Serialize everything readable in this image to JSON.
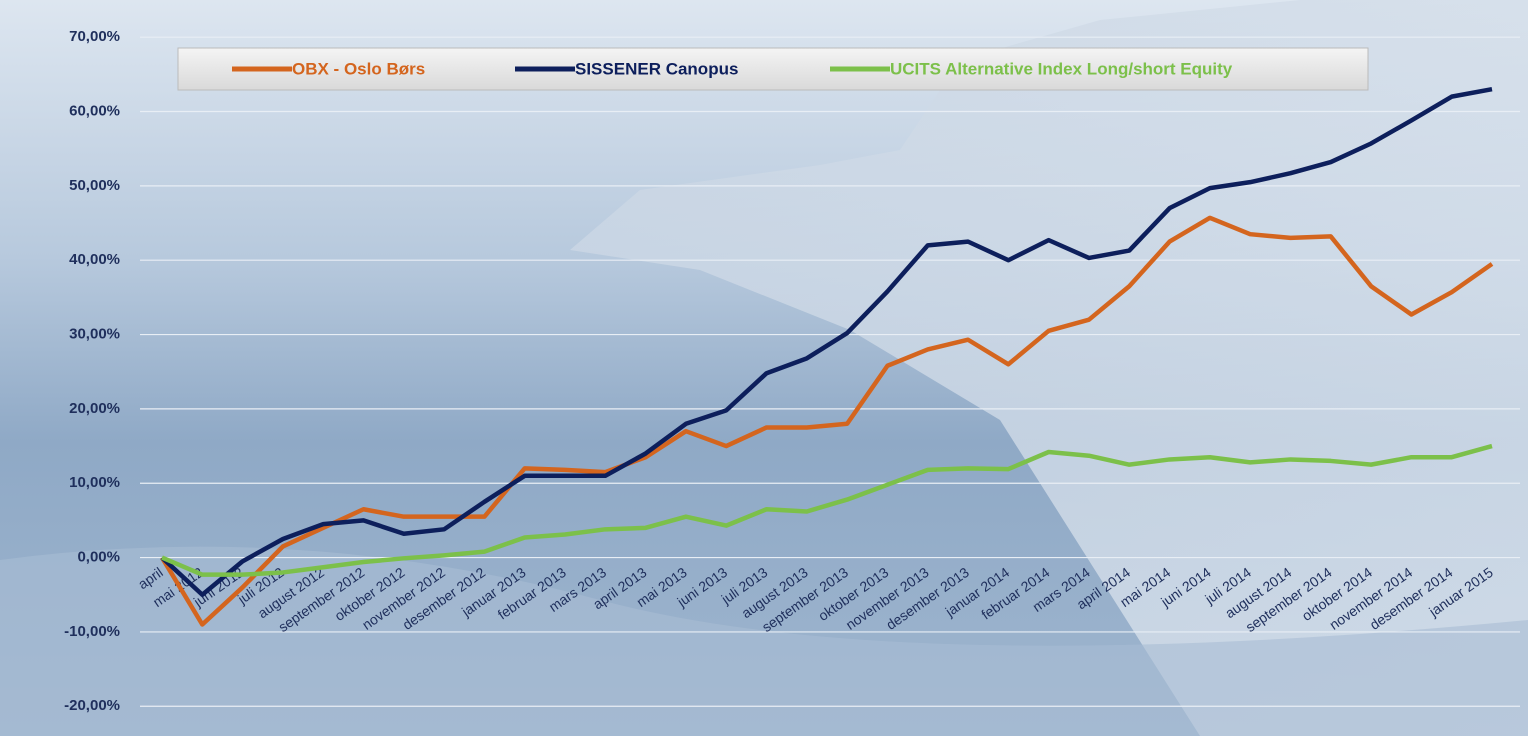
{
  "chart_data": {
    "type": "line",
    "categories": [
      "april",
      "mai 2012",
      "juni 2012",
      "juli 2012",
      "august 2012",
      "september 2012",
      "oktober 2012",
      "november 2012",
      "desember 2012",
      "januar 2013",
      "februar 2013",
      "mars 2013",
      "april 2013",
      "mai 2013",
      "juni 2013",
      "juli 2013",
      "august 2013",
      "september 2013",
      "oktober 2013",
      "november 2013",
      "desember 2013",
      "januar 2014",
      "februar 2014",
      "mars 2014",
      "april 2014",
      "mai 2014",
      "juni 2014",
      "juli 2014",
      "august 2014",
      "september 2014",
      "oktober 2014",
      "november 2014",
      "desember 2014",
      "januar 2015"
    ],
    "series": [
      {
        "name": "OBX - Oslo Børs",
        "color": "#d4651e",
        "values": [
          0,
          -9,
          -4,
          1.5,
          4,
          6.5,
          5.5,
          5.5,
          5.5,
          12,
          11.8,
          11.5,
          13.5,
          17,
          15,
          17.5,
          17.5,
          18,
          25.8,
          28,
          29.3,
          26,
          30.5,
          32,
          36.5,
          42.5,
          45.7,
          43.5,
          43,
          43.2,
          36.5,
          32.7,
          35.7,
          39.5
        ]
      },
      {
        "name": "SISSENER Canopus",
        "color": "#0d1f5c",
        "values": [
          0,
          -5,
          -0.5,
          2.5,
          4.5,
          5,
          3.2,
          3.8,
          7.5,
          11,
          11,
          11,
          14,
          18,
          19.8,
          24.8,
          26.8,
          30.2,
          35.8,
          42,
          42.5,
          40,
          42.7,
          40.3,
          41.3,
          47,
          49.7,
          50.5,
          51.7,
          53.2,
          55.7,
          58.8,
          62,
          63
        ]
      },
      {
        "name": "UCITS Alternative Index Long/short Equity",
        "color": "#7cc04a",
        "values": [
          0,
          -2.3,
          -2.3,
          -2,
          -1.3,
          -0.6,
          -0.1,
          0.3,
          0.8,
          2.7,
          3.1,
          3.8,
          4,
          5.5,
          4.3,
          6.5,
          6.2,
          7.8,
          9.8,
          11.8,
          12,
          11.9,
          14.2,
          13.7,
          12.5,
          13.2,
          13.5,
          12.8,
          13.2,
          13,
          12.5,
          13.5,
          13.5,
          15
        ]
      }
    ],
    "ylim": [
      -24,
      75
    ],
    "yticks": [
      {
        "value": -20,
        "label": "-20,00%"
      },
      {
        "value": -10,
        "label": "-10,00%"
      },
      {
        "value": 0,
        "label": "0,00%"
      },
      {
        "value": 10,
        "label": "10,00%"
      },
      {
        "value": 20,
        "label": "20,00%"
      },
      {
        "value": 30,
        "label": "30,00%"
      },
      {
        "value": 40,
        "label": "40,00%"
      },
      {
        "value": 50,
        "label": "50,00%"
      },
      {
        "value": 60,
        "label": "60,00%"
      },
      {
        "value": 70,
        "label": "70,00%"
      }
    ],
    "grid": true,
    "legend": "top"
  }
}
